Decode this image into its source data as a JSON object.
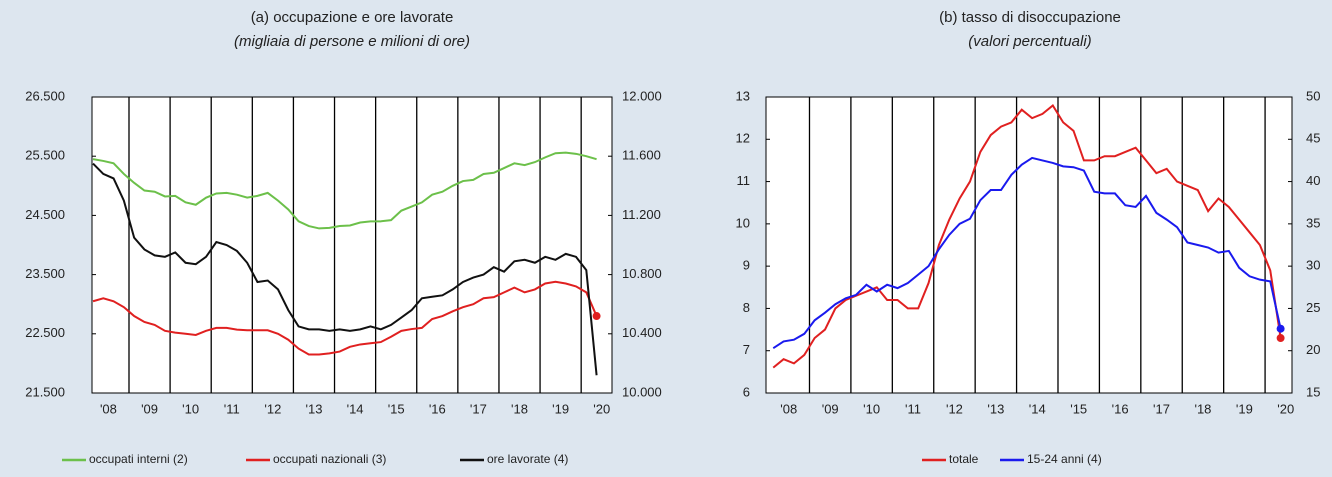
{
  "chart_data": [
    {
      "type": "line",
      "title": "(a) occupazione e ore lavorate",
      "subtitle": "(migliaia di persone e milioni di ore)",
      "x": [
        2008.125,
        2008.375,
        2008.625,
        2008.875,
        2009.125,
        2009.375,
        2009.625,
        2009.875,
        2010.125,
        2010.375,
        2010.625,
        2010.875,
        2011.125,
        2011.375,
        2011.625,
        2011.875,
        2012.125,
        2012.375,
        2012.625,
        2012.875,
        2013.125,
        2013.375,
        2013.625,
        2013.875,
        2014.125,
        2014.375,
        2014.625,
        2014.875,
        2015.125,
        2015.375,
        2015.625,
        2015.875,
        2016.125,
        2016.375,
        2016.625,
        2016.875,
        2017.125,
        2017.375,
        2017.625,
        2017.875,
        2018.125,
        2018.375,
        2018.625,
        2018.875,
        2019.125,
        2019.375,
        2019.625,
        2019.875,
        2020.125,
        2020.375
      ],
      "xlim": [
        2008.1,
        2020.75
      ],
      "xticks": [
        {
          "value": 2008.5,
          "label": "'08"
        },
        {
          "value": 2009.5,
          "label": "'09"
        },
        {
          "value": 2010.5,
          "label": "'10"
        },
        {
          "value": 2011.5,
          "label": "'11"
        },
        {
          "value": 2012.5,
          "label": "'12"
        },
        {
          "value": 2013.5,
          "label": "'13"
        },
        {
          "value": 2014.5,
          "label": "'14"
        },
        {
          "value": 2015.5,
          "label": "'15"
        },
        {
          "value": 2016.5,
          "label": "'16"
        },
        {
          "value": 2017.5,
          "label": "'17"
        },
        {
          "value": 2018.5,
          "label": "'18"
        },
        {
          "value": 2019.5,
          "label": "'19"
        },
        {
          "value": 2020.5,
          "label": "'20"
        }
      ],
      "ylim": [
        21500,
        26500
      ],
      "yticks": [
        {
          "value": 21500,
          "label": "21.500"
        },
        {
          "value": 22500,
          "label": "22.500"
        },
        {
          "value": 23500,
          "label": "23.500"
        },
        {
          "value": 24500,
          "label": "24.500"
        },
        {
          "value": 25500,
          "label": "25.500"
        },
        {
          "value": 26500,
          "label": "26.500"
        }
      ],
      "y2lim": [
        10000,
        12000
      ],
      "y2ticks": [
        {
          "value": 10000,
          "label": "10.000"
        },
        {
          "value": 10400,
          "label": "10.400"
        },
        {
          "value": 10800,
          "label": "10.800"
        },
        {
          "value": 11200,
          "label": "11.200"
        },
        {
          "value": 11600,
          "label": "11.600"
        },
        {
          "value": 12000,
          "label": "12.000"
        }
      ],
      "series": [
        {
          "name": "occupati interni (2)",
          "color": "#6cc04a",
          "values": [
            25450,
            25420,
            25380,
            25200,
            25050,
            24920,
            24900,
            24820,
            24830,
            24720,
            24680,
            24800,
            24870,
            24880,
            24850,
            24800,
            24830,
            24880,
            24750,
            24600,
            24400,
            24320,
            24280,
            24290,
            24320,
            24330,
            24380,
            24400,
            24400,
            24420,
            24580,
            24650,
            24720,
            24850,
            24900,
            25000,
            25080,
            25100,
            25200,
            25220,
            25300,
            25380,
            25350,
            25400,
            25480,
            25550,
            25560,
            25540,
            25500,
            25450
          ]
        },
        {
          "name": "occupati nazionali (3)",
          "color": "#e02020",
          "end_marker": true,
          "values": [
            23050,
            23100,
            23050,
            22950,
            22800,
            22700,
            22650,
            22550,
            22520,
            22500,
            22480,
            22550,
            22600,
            22600,
            22570,
            22560,
            22560,
            22560,
            22500,
            22400,
            22250,
            22150,
            22150,
            22170,
            22200,
            22280,
            22320,
            22340,
            22360,
            22450,
            22550,
            22580,
            22600,
            22750,
            22800,
            22880,
            22950,
            23000,
            23100,
            23120,
            23200,
            23280,
            23200,
            23250,
            23350,
            23380,
            23350,
            23300,
            23200,
            22800
          ]
        },
        {
          "name": "ore lavorate (4)",
          "color": "#111111",
          "axis": "y2",
          "values": [
            11550,
            11480,
            11450,
            11300,
            11050,
            10970,
            10930,
            10920,
            10950,
            10880,
            10870,
            10920,
            11020,
            11000,
            10960,
            10880,
            10750,
            10760,
            10700,
            10560,
            10450,
            10430,
            10430,
            10420,
            10430,
            10420,
            10430,
            10450,
            10430,
            10460,
            10510,
            10560,
            10640,
            10650,
            10660,
            10700,
            10750,
            10780,
            10800,
            10850,
            10820,
            10890,
            10900,
            10880,
            10920,
            10900,
            10940,
            10920,
            10830,
            10120
          ]
        }
      ]
    },
    {
      "type": "line",
      "title": "(b) tasso di disoccupazione",
      "subtitle": "(valori percentuali)",
      "x": [
        2008.125,
        2008.375,
        2008.625,
        2008.875,
        2009.125,
        2009.375,
        2009.625,
        2009.875,
        2010.125,
        2010.375,
        2010.625,
        2010.875,
        2011.125,
        2011.375,
        2011.625,
        2011.875,
        2012.125,
        2012.375,
        2012.625,
        2012.875,
        2013.125,
        2013.375,
        2013.625,
        2013.875,
        2014.125,
        2014.375,
        2014.625,
        2014.875,
        2015.125,
        2015.375,
        2015.625,
        2015.875,
        2016.125,
        2016.375,
        2016.625,
        2016.875,
        2017.125,
        2017.375,
        2017.625,
        2017.875,
        2018.125,
        2018.375,
        2018.625,
        2018.875,
        2019.125,
        2019.375,
        2019.625,
        2019.875,
        2020.125,
        2020.375
      ],
      "xlim": [
        2007.95,
        2020.65
      ],
      "xticks": [
        {
          "value": 2008.5,
          "label": "'08"
        },
        {
          "value": 2009.5,
          "label": "'09"
        },
        {
          "value": 2010.5,
          "label": "'10"
        },
        {
          "value": 2011.5,
          "label": "'11"
        },
        {
          "value": 2012.5,
          "label": "'12"
        },
        {
          "value": 2013.5,
          "label": "'13"
        },
        {
          "value": 2014.5,
          "label": "'14"
        },
        {
          "value": 2015.5,
          "label": "'15"
        },
        {
          "value": 2016.5,
          "label": "'16"
        },
        {
          "value": 2017.5,
          "label": "'17"
        },
        {
          "value": 2018.5,
          "label": "'18"
        },
        {
          "value": 2019.5,
          "label": "'19"
        },
        {
          "value": 2020.5,
          "label": "'20"
        }
      ],
      "ylim": [
        6,
        13
      ],
      "yticks": [
        6,
        7,
        8,
        9,
        10,
        11,
        12,
        13
      ],
      "y2lim": [
        15,
        50
      ],
      "y2ticks": [
        15,
        20,
        25,
        30,
        35,
        40,
        45,
        50
      ],
      "series": [
        {
          "name": "totale",
          "color": "#e02020",
          "end_marker": true,
          "values": [
            6.6,
            6.8,
            6.7,
            6.9,
            7.3,
            7.5,
            8.0,
            8.2,
            8.3,
            8.4,
            8.5,
            8.2,
            8.2,
            8.0,
            8.0,
            8.6,
            9.5,
            10.1,
            10.6,
            11.0,
            11.7,
            12.1,
            12.3,
            12.4,
            12.7,
            12.5,
            12.6,
            12.8,
            12.4,
            12.2,
            11.5,
            11.5,
            11.6,
            11.6,
            11.7,
            11.8,
            11.5,
            11.2,
            11.3,
            11.0,
            10.9,
            10.8,
            10.3,
            10.6,
            10.4,
            10.1,
            9.8,
            9.5,
            8.9,
            7.3
          ]
        },
        {
          "name": "15-24 anni (4)",
          "color": "#1a1aee",
          "axis": "y2",
          "end_marker": true,
          "values": [
            20.3,
            21.1,
            21.3,
            22.0,
            23.6,
            24.5,
            25.5,
            26.2,
            26.6,
            27.8,
            27.0,
            27.8,
            27.4,
            28.0,
            29.0,
            30.0,
            32.0,
            33.7,
            35.0,
            35.6,
            37.8,
            39.0,
            39.0,
            40.8,
            42.0,
            42.8,
            42.5,
            42.2,
            41.8,
            41.7,
            41.3,
            38.8,
            38.6,
            38.6,
            37.2,
            37.0,
            38.3,
            36.3,
            35.5,
            34.6,
            32.8,
            32.5,
            32.2,
            31.6,
            31.8,
            29.8,
            28.8,
            28.4,
            28.2,
            22.6
          ]
        }
      ]
    }
  ]
}
